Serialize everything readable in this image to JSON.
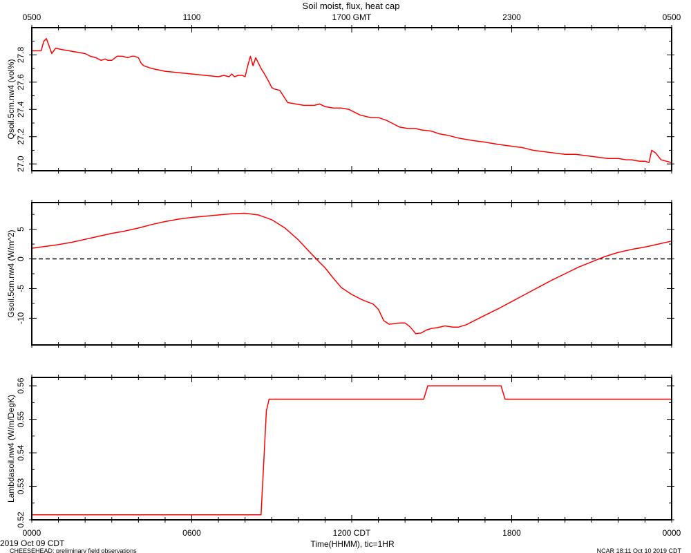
{
  "title": "Soil moist, flux, heat cap",
  "top_axis_labels": [
    "0500",
    "1100",
    "1700 GMT",
    "2300",
    "0500"
  ],
  "bottom_axis_labels": [
    "0000",
    "0600",
    "1200 CDT",
    "1800",
    "0000"
  ],
  "xlabel": "Time(HHMM), tic=1HR",
  "date_label": "2019 Oct 09 CDT",
  "footer_left": "CHEESEHEAD: preliminary field observations",
  "footer_right": "NCAR 18:11 Oct 10 2019 CDT",
  "colors": {
    "series": "#ff0000",
    "axes": "#000000"
  },
  "chart_data": [
    {
      "type": "line",
      "ylabel": "Qsoil.5cm.nw4 (vol%)",
      "x_unit": "hours since 0000 CDT",
      "xlim": [
        0,
        24
      ],
      "ylim": [
        26.95,
        28.0
      ],
      "yticks": [
        27.0,
        27.2,
        27.4,
        27.6,
        27.8
      ],
      "ytick_labels": [
        "27.0",
        "27.2",
        "27.4",
        "27.6",
        "27.8"
      ],
      "zero_line": false,
      "series": [
        {
          "x": [
            0,
            0.35,
            0.45,
            0.55,
            0.75,
            0.9,
            1.1,
            1.4,
            1.7,
            2.0,
            2.2,
            2.4,
            2.6,
            2.75,
            2.85,
            3.0,
            3.2,
            3.4,
            3.6,
            3.75,
            3.85,
            4.0,
            4.1,
            4.2,
            4.5,
            5.0,
            5.5,
            6.0,
            6.5,
            7.0,
            7.2,
            7.4,
            7.5,
            7.6,
            7.75,
            7.9,
            8.0,
            8.1,
            8.2,
            8.3,
            8.4,
            8.6,
            8.7,
            8.9,
            9.0,
            9.1,
            9.3,
            9.6,
            9.9,
            10.2,
            10.4,
            10.6,
            10.8,
            11.0,
            11.3,
            11.6,
            11.9,
            12.1,
            12.3,
            12.7,
            13.0,
            13.3,
            13.5,
            13.8,
            14.1,
            14.4,
            14.6,
            15.0,
            15.3,
            15.6,
            16.0,
            16.3,
            16.6,
            17.0,
            17.3,
            17.6,
            18.0,
            18.4,
            18.8,
            19.2,
            19.6,
            20.0,
            20.4,
            20.8,
            21.2,
            21.6,
            22.0,
            22.3,
            22.5,
            22.8,
            23.0,
            23.15,
            23.25,
            23.4,
            23.6,
            24.0
          ],
          "y": [
            27.83,
            27.83,
            27.9,
            27.92,
            27.81,
            27.85,
            27.84,
            27.83,
            27.82,
            27.81,
            27.79,
            27.78,
            27.76,
            27.77,
            27.76,
            27.76,
            27.79,
            27.79,
            27.78,
            27.79,
            27.79,
            27.78,
            27.74,
            27.72,
            27.7,
            27.68,
            27.67,
            27.66,
            27.65,
            27.64,
            27.65,
            27.64,
            27.66,
            27.64,
            27.65,
            27.65,
            27.64,
            27.72,
            27.79,
            27.72,
            27.78,
            27.7,
            27.67,
            27.6,
            27.56,
            27.55,
            27.54,
            27.45,
            27.44,
            27.43,
            27.43,
            27.43,
            27.44,
            27.42,
            27.41,
            27.41,
            27.4,
            27.38,
            27.36,
            27.34,
            27.34,
            27.32,
            27.3,
            27.27,
            27.26,
            27.26,
            27.25,
            27.24,
            27.22,
            27.21,
            27.19,
            27.18,
            27.17,
            27.16,
            27.15,
            27.14,
            27.13,
            27.12,
            27.1,
            27.09,
            27.08,
            27.07,
            27.07,
            27.06,
            27.05,
            27.04,
            27.04,
            27.03,
            27.03,
            27.02,
            27.02,
            27.01,
            27.1,
            27.08,
            27.03,
            27.01
          ]
        }
      ]
    },
    {
      "type": "line",
      "ylabel": "Gsoil.5cm.nw4 (W/m^2)",
      "x_unit": "hours since 0000 CDT",
      "xlim": [
        0,
        24
      ],
      "ylim": [
        -14.5,
        9.5
      ],
      "yticks": [
        -10,
        -5,
        0,
        5
      ],
      "ytick_labels": [
        "-10",
        "-5",
        "0",
        "5"
      ],
      "zero_line": true,
      "series": [
        {
          "x": [
            0,
            0.5,
            1.0,
            1.5,
            2.0,
            2.5,
            3.0,
            3.5,
            4.0,
            4.5,
            5.0,
            5.5,
            6.0,
            6.5,
            7.0,
            7.5,
            8.0,
            8.5,
            9.0,
            9.5,
            10.0,
            10.5,
            10.8,
            11.0,
            11.3,
            11.6,
            12.0,
            12.4,
            12.8,
            13.0,
            13.2,
            13.4,
            13.6,
            13.8,
            14.0,
            14.2,
            14.4,
            14.6,
            14.8,
            15.0,
            15.2,
            15.5,
            15.8,
            16.0,
            16.3,
            16.6,
            17.0,
            17.5,
            18.0,
            18.5,
            19.0,
            19.5,
            20.0,
            20.5,
            21.0,
            21.5,
            22.0,
            22.5,
            23.0,
            23.5,
            24.0
          ],
          "y": [
            1.8,
            2.1,
            2.4,
            2.8,
            3.3,
            3.8,
            4.3,
            4.7,
            5.2,
            5.8,
            6.3,
            6.7,
            7.0,
            7.2,
            7.4,
            7.6,
            7.7,
            7.4,
            6.6,
            5.2,
            3.2,
            0.8,
            -0.6,
            -1.5,
            -3.2,
            -4.8,
            -6.0,
            -6.9,
            -7.6,
            -8.5,
            -10.4,
            -11.0,
            -10.9,
            -10.8,
            -10.8,
            -11.5,
            -12.6,
            -12.5,
            -12.0,
            -11.7,
            -11.6,
            -11.3,
            -11.5,
            -11.5,
            -11.1,
            -10.4,
            -9.5,
            -8.4,
            -7.2,
            -6.0,
            -4.8,
            -3.6,
            -2.5,
            -1.4,
            -0.5,
            0.4,
            1.1,
            1.6,
            2.0,
            2.5,
            3.0
          ]
        }
      ]
    },
    {
      "type": "line",
      "ylabel": "Lambdasoil.nw4 (W/m/DegK)",
      "x_unit": "hours since 0000 CDT",
      "xlim": [
        0,
        24
      ],
      "ylim": [
        0.52,
        0.5625
      ],
      "yticks": [
        0.52,
        0.53,
        0.54,
        0.55,
        0.56
      ],
      "ytick_labels": [
        "0.52",
        "0.53",
        "0.54",
        "0.55",
        "0.56"
      ],
      "zero_line": false,
      "series": [
        {
          "x": [
            0,
            8.6,
            8.8,
            8.9,
            14.7,
            14.85,
            17.6,
            17.75,
            24.0
          ],
          "y": [
            0.5215,
            0.5215,
            0.5525,
            0.556,
            0.556,
            0.56,
            0.56,
            0.556,
            0.556
          ]
        }
      ]
    }
  ]
}
